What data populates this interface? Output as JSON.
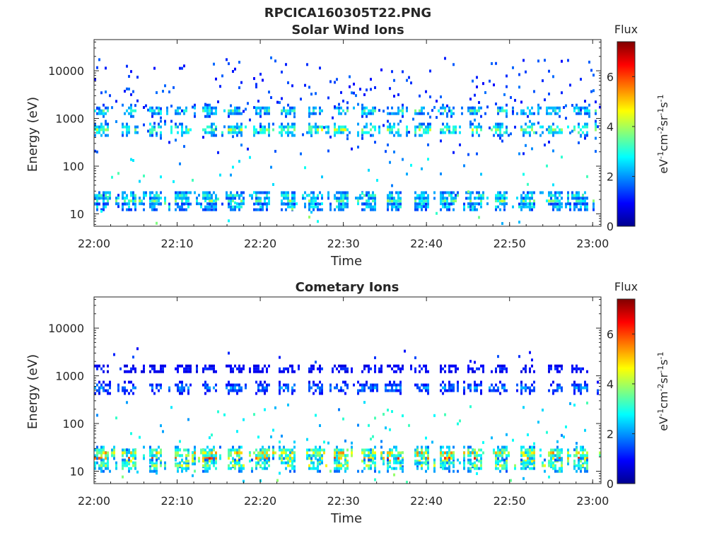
{
  "figure_title": "RPCICA160305T22.PNG",
  "colormap": [
    "#00008f",
    "#0000ff",
    "#0080ff",
    "#00ffff",
    "#80ff80",
    "#ffff00",
    "#ff8000",
    "#ff0000",
    "#800000"
  ],
  "chart_data": [
    {
      "type": "heatmap",
      "title": "Solar Wind Ions",
      "xlabel": "Time",
      "ylabel": "Energy (eV)",
      "x_tick_labels": [
        "22:00",
        "22:10",
        "22:20",
        "22:30",
        "22:40",
        "22:50",
        "23:00"
      ],
      "x_tick_minutes": [
        0,
        10,
        20,
        30,
        40,
        50,
        60
      ],
      "xlim_minutes": [
        0,
        61
      ],
      "y_scale": "log",
      "ylim": [
        5.5,
        45000
      ],
      "y_ticks": [
        10,
        100,
        1000,
        10000
      ],
      "y_tick_labels": [
        "10",
        "100",
        "1000",
        "10000"
      ],
      "colorbar": {
        "title": "Flux",
        "label": "eV-1cm-2sr-1s-1",
        "ticks": [
          0,
          2,
          4,
          6
        ],
        "range": [
          0,
          7.4
        ]
      },
      "bands": [
        {
          "e": 620,
          "v": 3.9,
          "b": 0.22
        },
        {
          "e": 1550,
          "v": 3.1,
          "b": 0.12
        },
        {
          "e": 20,
          "v": 3.5,
          "b": 0.12
        },
        {
          "e": 26,
          "v": 3.0,
          "b": 0.08
        },
        {
          "e": 15,
          "v": 2.6,
          "b": 0.06
        }
      ],
      "sparse": [
        {
          "range": [
            5000,
            20000
          ],
          "v": 1.3,
          "d": 0.05
        },
        {
          "range": [
            1500,
            5000
          ],
          "v": 1.4,
          "d": 0.07
        },
        {
          "range": [
            180,
            1200
          ],
          "v": 1.5,
          "d": 0.06
        },
        {
          "range": [
            40,
            180
          ],
          "v": 2.6,
          "d": 0.03
        },
        {
          "range": [
            6,
            40
          ],
          "v": 3.0,
          "d": 0.012
        }
      ],
      "seed": 17
    },
    {
      "type": "heatmap",
      "title": "Cometary Ions",
      "xlabel": "Time",
      "ylabel": "Energy (eV)",
      "x_tick_labels": [
        "22:00",
        "22:10",
        "22:20",
        "22:30",
        "22:40",
        "22:50",
        "23:00"
      ],
      "x_tick_minutes": [
        0,
        10,
        20,
        30,
        40,
        50,
        60
      ],
      "xlim_minutes": [
        0,
        61
      ],
      "y_scale": "log",
      "ylim": [
        5.5,
        45000
      ],
      "y_ticks": [
        10,
        100,
        1000,
        10000
      ],
      "y_tick_labels": [
        "10",
        "100",
        "1000",
        "10000"
      ],
      "colorbar": {
        "title": "Flux",
        "label": "eV-1cm-2sr-1s-1",
        "ticks": [
          0,
          2,
          4,
          6
        ],
        "range": [
          0,
          7.4
        ]
      },
      "bands": [
        {
          "e": 20,
          "v": 5.4,
          "b": 0.28
        },
        {
          "e": 14,
          "v": 4.0,
          "b": 0.2
        },
        {
          "e": 26,
          "v": 4.6,
          "b": 0.18
        },
        {
          "e": 600,
          "v": 2.0,
          "b": 0.16
        },
        {
          "e": 1500,
          "v": 1.2,
          "b": 0.06
        }
      ],
      "sparse": [
        {
          "range": [
            2000,
            4000
          ],
          "v": 1.2,
          "d": 0.01
        },
        {
          "range": [
            40,
            300
          ],
          "v": 2.6,
          "d": 0.05
        },
        {
          "range": [
            5.6,
            12
          ],
          "v": 3.0,
          "d": 0.02
        }
      ],
      "seed": 53
    }
  ]
}
